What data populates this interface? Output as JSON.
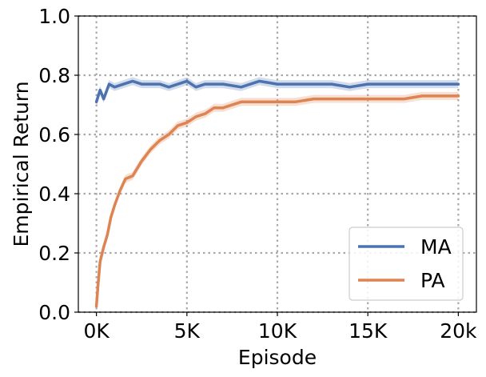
{
  "chart_data": {
    "type": "line",
    "xlabel": "Episode",
    "ylabel": "Empirical Return",
    "xlim": [
      -1000,
      21000
    ],
    "ylim": [
      0.0,
      1.0
    ],
    "xticks": [
      0,
      5000,
      10000,
      15000,
      20000
    ],
    "xtick_labels": [
      "0K",
      "5K",
      "10K",
      "15K",
      "20k"
    ],
    "yticks": [
      0.0,
      0.2,
      0.4,
      0.6,
      0.8,
      1.0
    ],
    "ytick_labels": [
      "0.0",
      "0.2",
      "0.4",
      "0.6",
      "0.8",
      "1.0"
    ],
    "grid": true,
    "legend_position": "lower-right",
    "series": [
      {
        "name": "MA",
        "color": "#4c72b0",
        "x": [
          0,
          200,
          400,
          700,
          1000,
          1500,
          2000,
          2500,
          3000,
          3500,
          4000,
          4500,
          5000,
          5500,
          6000,
          7000,
          8000,
          9000,
          10000,
          11000,
          12000,
          13000,
          14000,
          15000,
          16000,
          17000,
          18000,
          19000,
          20000
        ],
        "values": [
          0.71,
          0.75,
          0.72,
          0.77,
          0.76,
          0.77,
          0.78,
          0.77,
          0.77,
          0.77,
          0.76,
          0.77,
          0.78,
          0.76,
          0.77,
          0.77,
          0.76,
          0.78,
          0.77,
          0.77,
          0.77,
          0.77,
          0.76,
          0.77,
          0.77,
          0.77,
          0.77,
          0.77,
          0.77
        ]
      },
      {
        "name": "PA",
        "color": "#dd8452",
        "x": [
          0,
          100,
          200,
          400,
          600,
          800,
          1000,
          1300,
          1600,
          2000,
          2500,
          3000,
          3500,
          4000,
          4500,
          5000,
          5500,
          6000,
          6500,
          7000,
          8000,
          9000,
          10000,
          11000,
          12000,
          13000,
          14000,
          15000,
          16000,
          17000,
          18000,
          19000,
          20000
        ],
        "values": [
          0.02,
          0.1,
          0.17,
          0.22,
          0.26,
          0.32,
          0.36,
          0.41,
          0.45,
          0.46,
          0.51,
          0.55,
          0.58,
          0.6,
          0.63,
          0.64,
          0.66,
          0.67,
          0.69,
          0.69,
          0.71,
          0.71,
          0.71,
          0.71,
          0.72,
          0.72,
          0.72,
          0.72,
          0.72,
          0.72,
          0.73,
          0.73,
          0.73
        ]
      }
    ]
  }
}
